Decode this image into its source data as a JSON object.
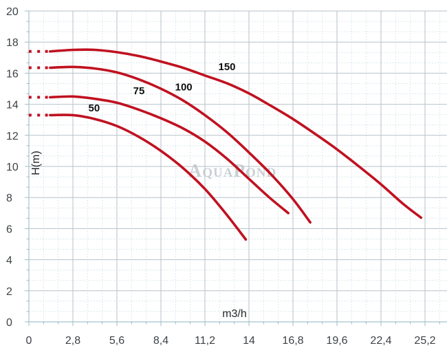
{
  "chart_data": {
    "type": "line",
    "title": "",
    "xlabel": "m3/h",
    "ylabel": "H(m)",
    "xlim": [
      0,
      26.6
    ],
    "ylim": [
      0,
      20
    ],
    "grid": {
      "major": true,
      "minor": true,
      "minor_divisions": 3,
      "major_color": "#b7c2c9",
      "minor_color": "#cfdfe7",
      "axis_color": "#a5c3cf",
      "tick_color": "#9dbcc9"
    },
    "x_ticks": {
      "values": [
        0,
        2.8,
        5.6,
        8.4,
        11.2,
        14,
        16.8,
        19.6,
        22.4,
        25.2
      ],
      "labels": [
        "0",
        "2,8",
        "5,6",
        "8,4",
        "11,2",
        "14",
        "16,8",
        "19,6",
        "22,4",
        "25,2"
      ]
    },
    "y_ticks": {
      "values": [
        0,
        2,
        4,
        6,
        8,
        10,
        12,
        14,
        16,
        18,
        20
      ],
      "labels": [
        "0",
        "2",
        "4",
        "6",
        "8",
        "10",
        "12",
        "14",
        "16",
        "18",
        "20"
      ]
    },
    "curve_color": "#c01120",
    "text_color": "#3d4246",
    "label_color": "#0e0e0e",
    "watermark": {
      "text": "AquaPond"
    },
    "series": [
      {
        "name": "50",
        "label": "50",
        "label_at": [
          4.15,
          13.55
        ],
        "dotted_lead_x": [
          0.08,
          0.62,
          1.12
        ],
        "points": [
          [
            1.35,
            13.3
          ],
          [
            2.8,
            13.3
          ],
          [
            4.2,
            13.05
          ],
          [
            5.6,
            12.6
          ],
          [
            7.0,
            11.9
          ],
          [
            8.4,
            11.0
          ],
          [
            9.8,
            9.9
          ],
          [
            11.2,
            8.55
          ],
          [
            12.5,
            7.0
          ],
          [
            13.8,
            5.3
          ]
        ]
      },
      {
        "name": "75",
        "label": "75",
        "label_at": [
          7.0,
          14.65
        ],
        "dotted_lead_x": [
          0.08,
          0.62,
          1.12
        ],
        "points": [
          [
            1.35,
            14.45
          ],
          [
            2.8,
            14.5
          ],
          [
            4.2,
            14.35
          ],
          [
            5.6,
            14.1
          ],
          [
            7.0,
            13.65
          ],
          [
            8.4,
            13.1
          ],
          [
            9.8,
            12.45
          ],
          [
            11.2,
            11.6
          ],
          [
            12.6,
            10.5
          ],
          [
            14.0,
            9.2
          ],
          [
            15.3,
            8.0
          ],
          [
            16.5,
            7.0
          ]
        ]
      },
      {
        "name": "100",
        "label": "100",
        "label_at": [
          9.85,
          14.9
        ],
        "dotted_lead_x": [
          0.08,
          0.62,
          1.12
        ],
        "points": [
          [
            1.35,
            16.35
          ],
          [
            2.8,
            16.4
          ],
          [
            4.2,
            16.3
          ],
          [
            5.6,
            16.05
          ],
          [
            7.0,
            15.6
          ],
          [
            8.4,
            15.0
          ],
          [
            9.8,
            14.25
          ],
          [
            11.2,
            13.3
          ],
          [
            12.6,
            12.2
          ],
          [
            14.0,
            10.9
          ],
          [
            15.4,
            9.5
          ],
          [
            16.8,
            7.9
          ],
          [
            17.9,
            6.4
          ]
        ]
      },
      {
        "name": "150",
        "label": "150",
        "label_at": [
          12.6,
          16.2
        ],
        "dotted_lead_x": [
          0.08,
          0.62,
          1.12
        ],
        "points": [
          [
            1.35,
            17.4
          ],
          [
            2.8,
            17.5
          ],
          [
            4.2,
            17.5
          ],
          [
            5.6,
            17.35
          ],
          [
            7.0,
            17.1
          ],
          [
            8.4,
            16.75
          ],
          [
            9.8,
            16.35
          ],
          [
            11.2,
            15.85
          ],
          [
            12.6,
            15.35
          ],
          [
            14.0,
            14.7
          ],
          [
            15.4,
            13.9
          ],
          [
            16.8,
            13.05
          ],
          [
            18.2,
            12.1
          ],
          [
            19.6,
            11.1
          ],
          [
            21.0,
            10.0
          ],
          [
            22.4,
            8.85
          ],
          [
            23.8,
            7.6
          ],
          [
            24.95,
            6.7
          ]
        ]
      }
    ]
  }
}
